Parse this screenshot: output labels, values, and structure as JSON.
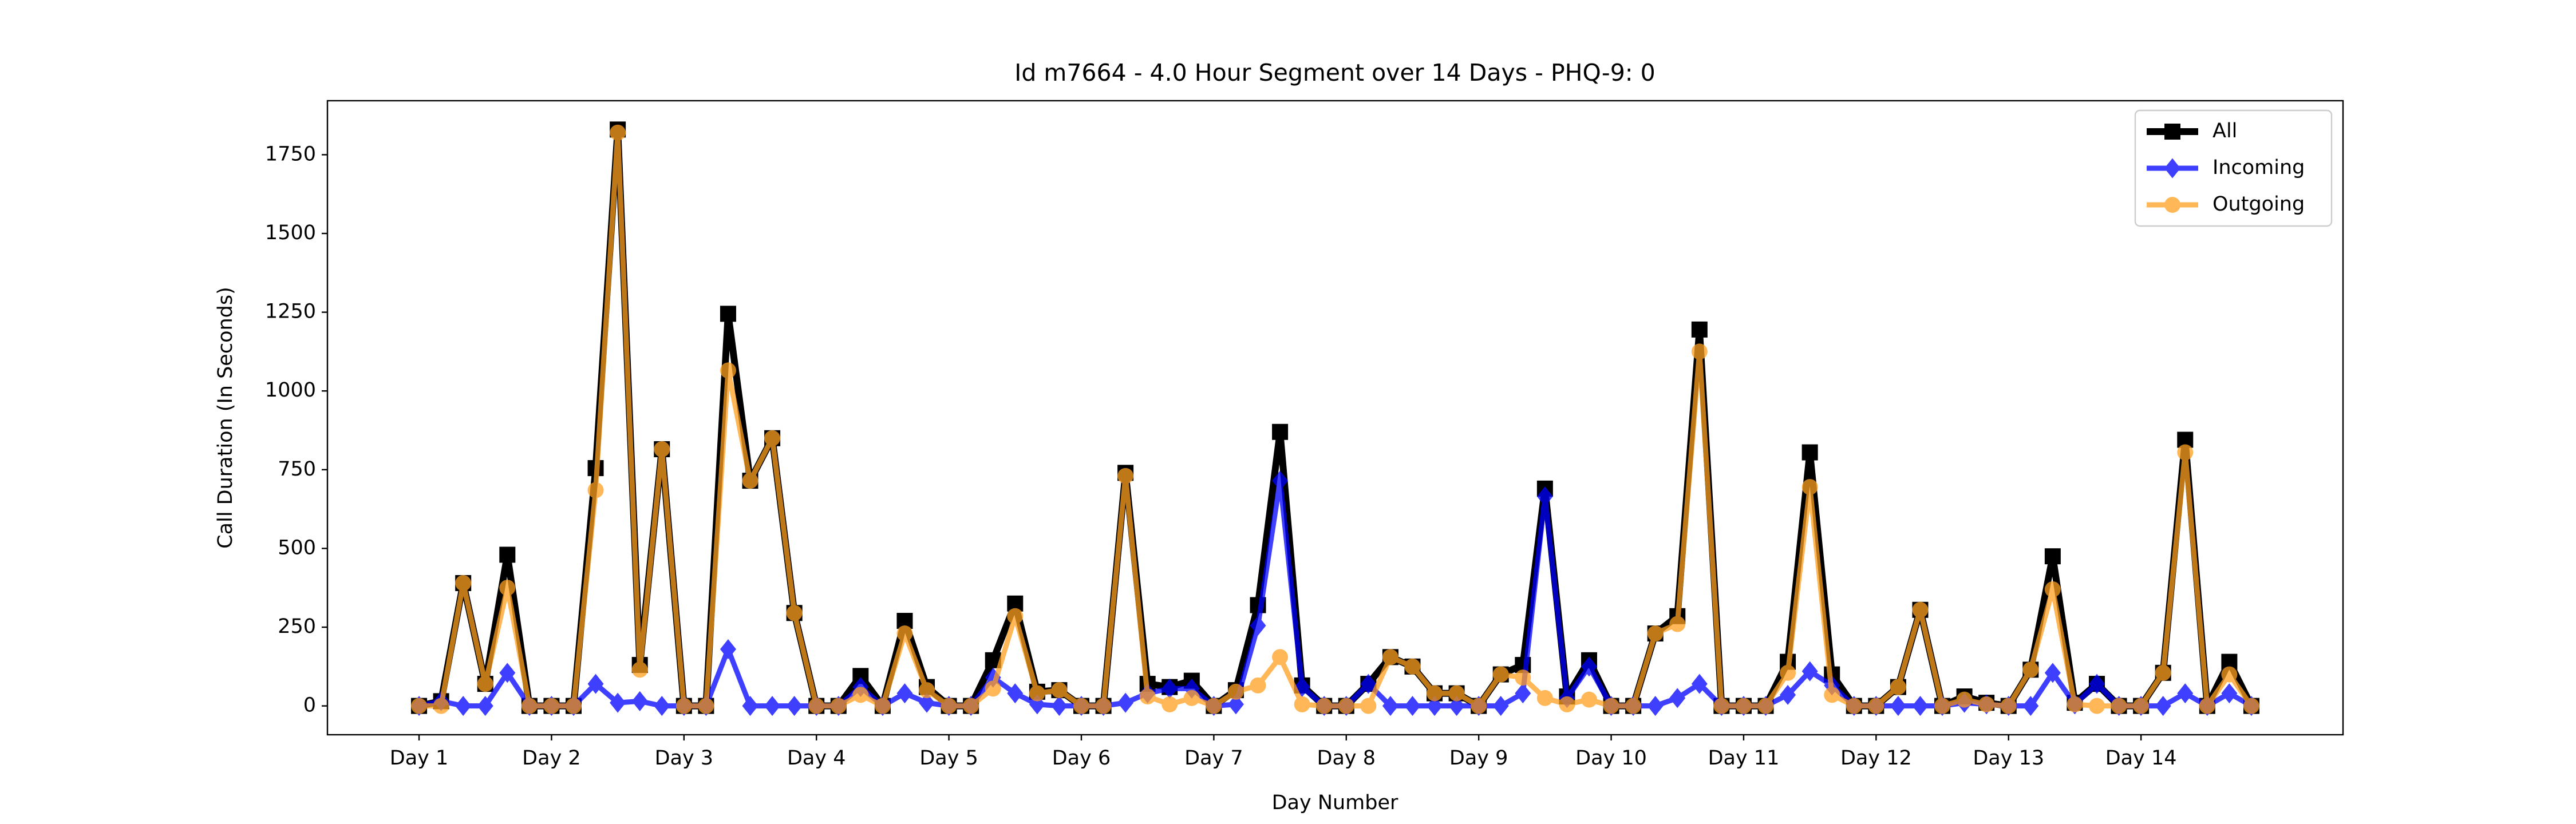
{
  "chart_data": {
    "type": "line",
    "title": "Id m7664 - 4.0 Hour Segment over 14 Days - PHQ-9: 0",
    "xlabel": "Day Number",
    "ylabel": "Call Duration (In Seconds)",
    "x": [
      0,
      1,
      2,
      3,
      4,
      5,
      6,
      7,
      8,
      9,
      10,
      11,
      12,
      13,
      14,
      15,
      16,
      17,
      18,
      19,
      20,
      21,
      22,
      23,
      24,
      25,
      26,
      27,
      28,
      29,
      30,
      31,
      32,
      33,
      34,
      35,
      36,
      37,
      38,
      39,
      40,
      41,
      42,
      43,
      44,
      45,
      46,
      47,
      48,
      49,
      50,
      51,
      52,
      53,
      54,
      55,
      56,
      57,
      58,
      59,
      60,
      61,
      62,
      63,
      64,
      65,
      66,
      67,
      68,
      69,
      70,
      71,
      72,
      73,
      74,
      75,
      76,
      77,
      78,
      79,
      80,
      81,
      82,
      83
    ],
    "series": [
      {
        "name": "All",
        "color": "#000000",
        "marker": "s",
        "values": [
          0,
          15,
          390,
          70,
          480,
          0,
          0,
          0,
          755,
          1830,
          130,
          815,
          0,
          0,
          1245,
          715,
          850,
          295,
          0,
          0,
          95,
          0,
          270,
          60,
          0,
          0,
          145,
          325,
          45,
          50,
          0,
          0,
          740,
          70,
          60,
          80,
          0,
          50,
          320,
          870,
          65,
          0,
          0,
          70,
          155,
          125,
          40,
          40,
          0,
          100,
          130,
          690,
          30,
          145,
          0,
          0,
          230,
          285,
          1195,
          0,
          0,
          0,
          140,
          805,
          100,
          0,
          0,
          60,
          305,
          0,
          30,
          10,
          0,
          115,
          475,
          10,
          70,
          0,
          0,
          105,
          845,
          0,
          140,
          0
        ]
      },
      {
        "name": "Incoming",
        "color": "#0000ff",
        "marker": "D",
        "values": [
          0,
          15,
          0,
          0,
          105,
          0,
          0,
          0,
          70,
          10,
          15,
          0,
          0,
          0,
          180,
          0,
          0,
          0,
          0,
          0,
          60,
          0,
          40,
          10,
          0,
          0,
          90,
          40,
          5,
          0,
          0,
          0,
          10,
          40,
          55,
          55,
          0,
          5,
          255,
          715,
          60,
          0,
          0,
          70,
          0,
          0,
          0,
          0,
          0,
          0,
          40,
          665,
          25,
          125,
          0,
          0,
          0,
          25,
          70,
          0,
          0,
          0,
          35,
          110,
          65,
          0,
          0,
          0,
          0,
          0,
          10,
          5,
          0,
          0,
          105,
          5,
          70,
          0,
          0,
          0,
          40,
          0,
          40,
          0
        ]
      },
      {
        "name": "Outgoing",
        "color": "#ffa020",
        "marker": "o",
        "values": [
          0,
          0,
          390,
          70,
          375,
          0,
          0,
          0,
          685,
          1820,
          115,
          815,
          0,
          0,
          1065,
          715,
          850,
          295,
          0,
          0,
          35,
          0,
          230,
          50,
          0,
          0,
          55,
          285,
          40,
          50,
          0,
          0,
          730,
          30,
          5,
          25,
          0,
          45,
          65,
          155,
          5,
          0,
          0,
          0,
          155,
          125,
          40,
          40,
          0,
          100,
          90,
          25,
          5,
          20,
          0,
          0,
          230,
          260,
          1125,
          0,
          0,
          0,
          105,
          695,
          35,
          0,
          0,
          60,
          305,
          0,
          20,
          5,
          0,
          115,
          370,
          5,
          0,
          0,
          0,
          105,
          805,
          0,
          100,
          0
        ]
      }
    ],
    "xlim": [
      -4.15,
      87.15
    ],
    "xticks": [
      {
        "value": 0,
        "label": "Day 1"
      },
      {
        "value": 6,
        "label": "Day 2"
      },
      {
        "value": 12,
        "label": "Day 3"
      },
      {
        "value": 18,
        "label": "Day 4"
      },
      {
        "value": 24,
        "label": "Day 5"
      },
      {
        "value": 30,
        "label": "Day 6"
      },
      {
        "value": 36,
        "label": "Day 7"
      },
      {
        "value": 42,
        "label": "Day 8"
      },
      {
        "value": 48,
        "label": "Day 9"
      },
      {
        "value": 54,
        "label": "Day 10"
      },
      {
        "value": 60,
        "label": "Day 11"
      },
      {
        "value": 66,
        "label": "Day 12"
      },
      {
        "value": 72,
        "label": "Day 13"
      },
      {
        "value": 78,
        "label": "Day 14"
      }
    ],
    "ylim": [
      -91.5,
      1921.5
    ],
    "yticks": [
      0,
      250,
      500,
      750,
      1000,
      1250,
      1500,
      1750
    ],
    "legend": "upper right"
  }
}
